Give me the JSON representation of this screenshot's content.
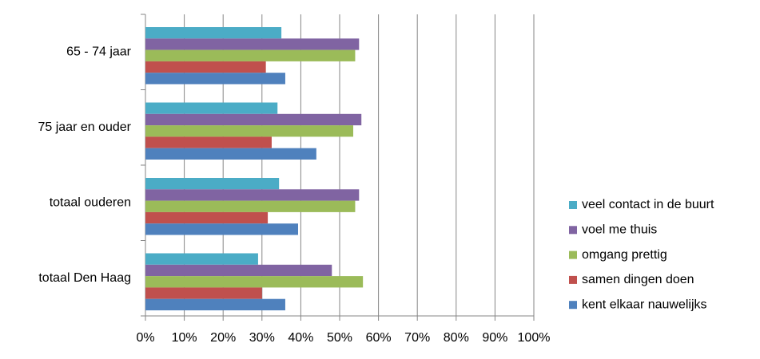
{
  "chart_data": {
    "type": "hbar",
    "categories": [
      "65 - 74 jaar",
      "75 jaar en ouder",
      "totaal ouderen",
      "totaal Den Haag"
    ],
    "series": [
      {
        "name": "veel contact in de buurt",
        "color": "#4bacc6",
        "values": [
          35,
          34,
          34.4,
          29
        ]
      },
      {
        "name": "voel me thuis",
        "color": "#8064a2",
        "values": [
          55,
          55.6,
          55,
          48
        ]
      },
      {
        "name": "omgang prettig",
        "color": "#9bbb59",
        "values": [
          54,
          53.5,
          54,
          56
        ]
      },
      {
        "name": "samen dingen doen",
        "color": "#c0504d",
        "values": [
          31,
          32.5,
          31.5,
          30
        ]
      },
      {
        "name": "kent elkaar nauwelijks",
        "color": "#4f81bd",
        "values": [
          36,
          44,
          39.3,
          36
        ]
      }
    ],
    "xlim": [
      0,
      100
    ],
    "xticks": [
      {
        "value": 0,
        "label": "0%"
      },
      {
        "value": 10,
        "label": "10%"
      },
      {
        "value": 20,
        "label": "20%"
      },
      {
        "value": 30,
        "label": "30%"
      },
      {
        "value": 40,
        "label": "40%"
      },
      {
        "value": 50,
        "label": "50%"
      },
      {
        "value": 60,
        "label": "60%"
      },
      {
        "value": 70,
        "label": "70%"
      },
      {
        "value": 80,
        "label": "80%"
      },
      {
        "value": 90,
        "label": "90%"
      },
      {
        "value": 100,
        "label": "100%"
      }
    ],
    "grid": true,
    "legend": "right"
  }
}
